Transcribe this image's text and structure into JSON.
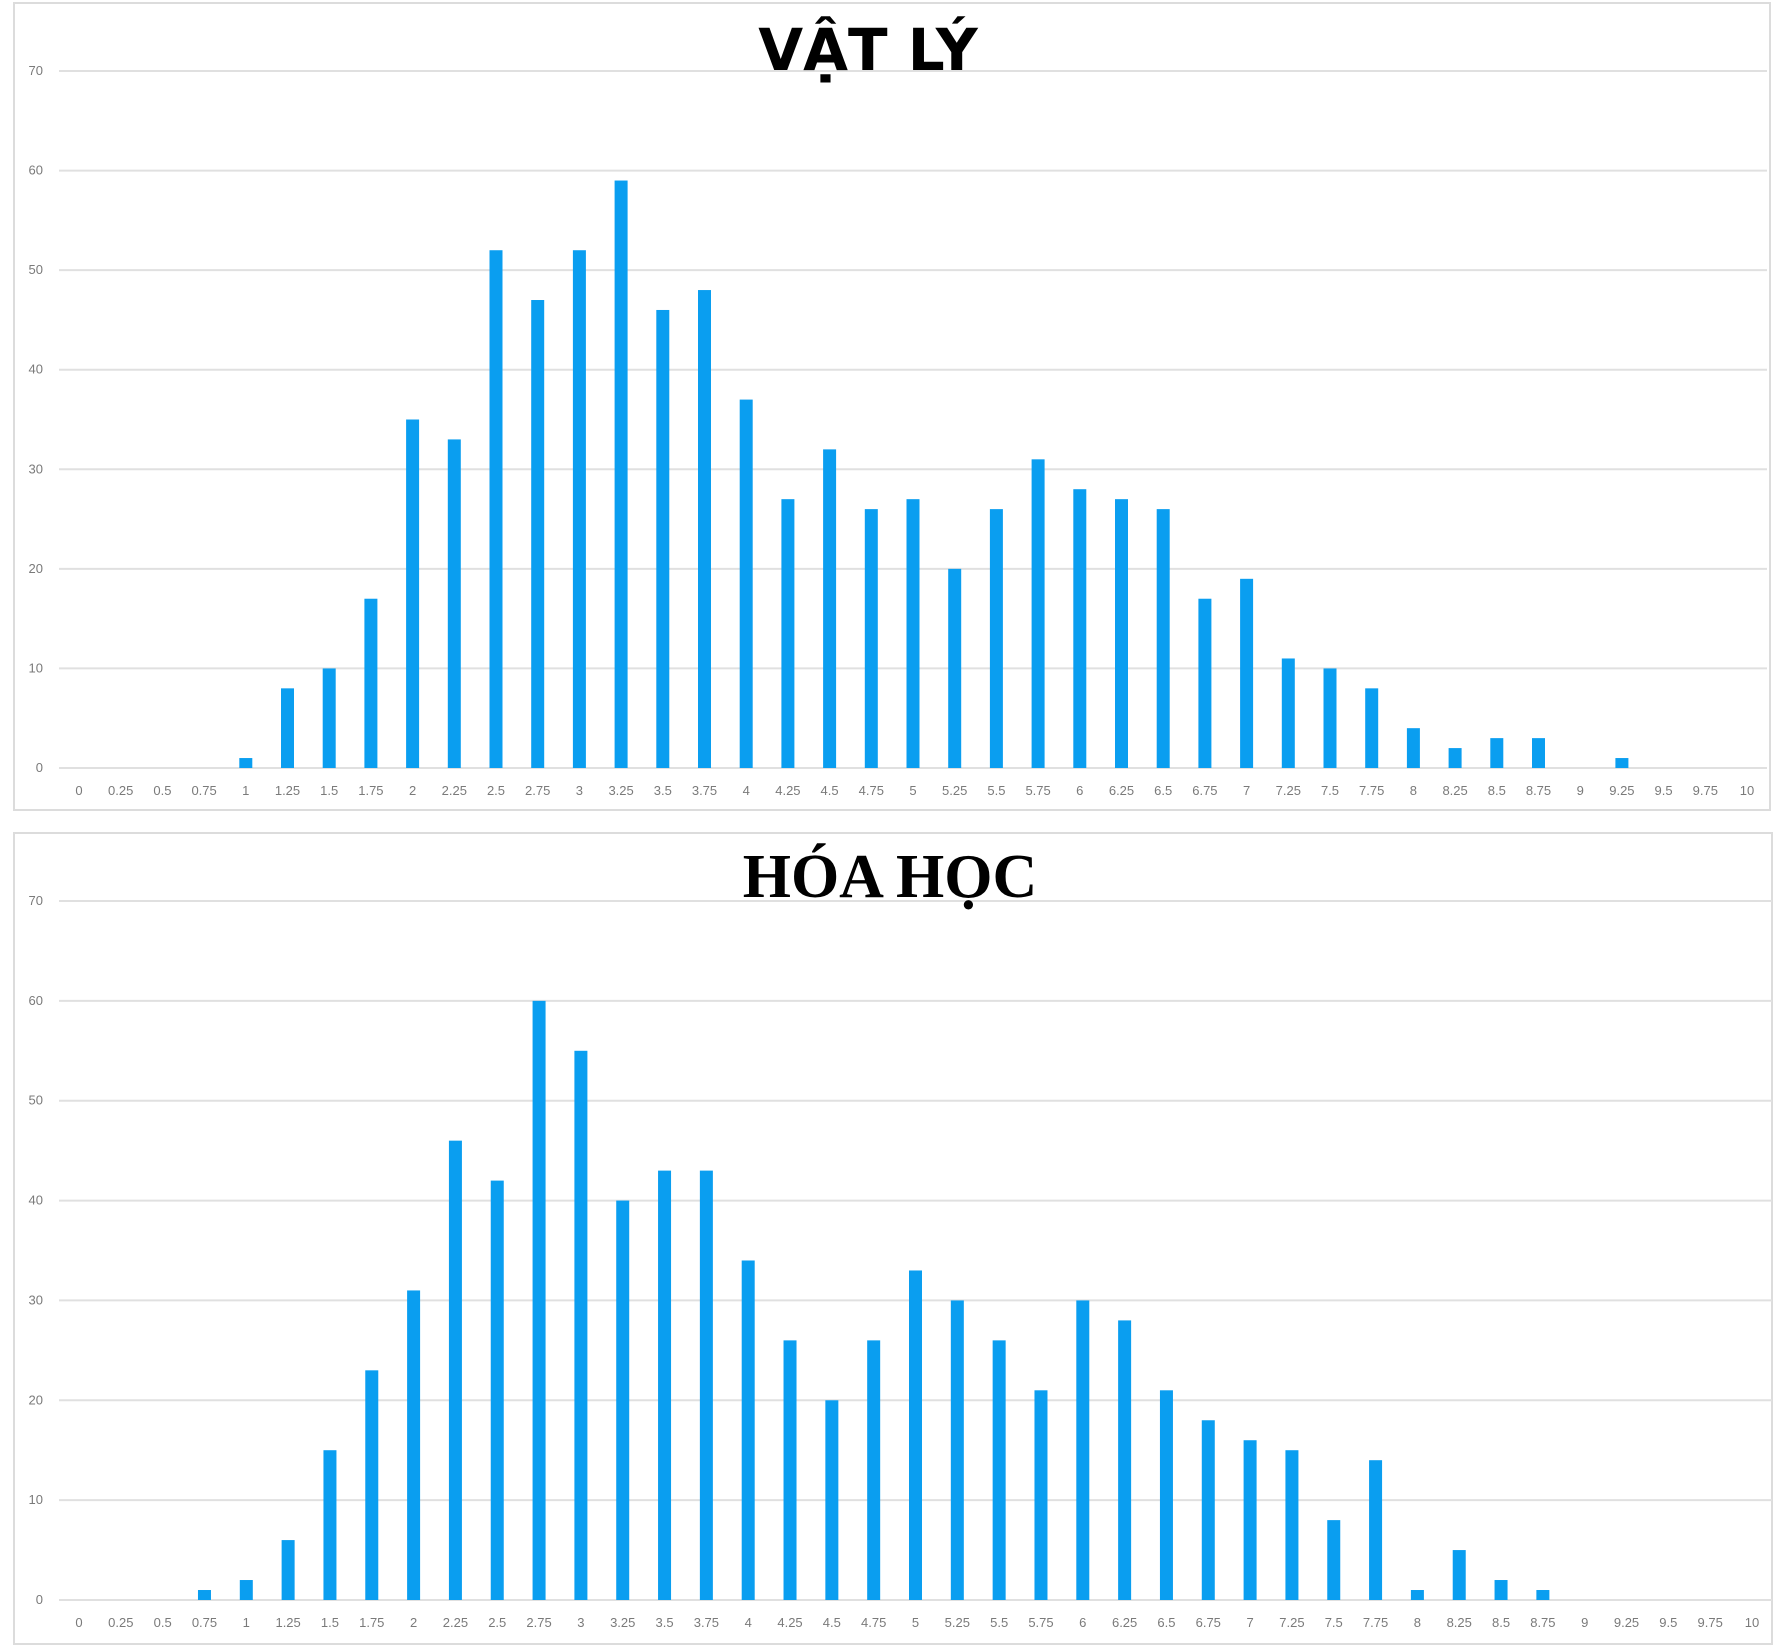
{
  "chart_data": [
    {
      "type": "bar",
      "title": "VẬT LÝ",
      "xlabel": "",
      "ylabel": "",
      "ylim": [
        0,
        70
      ],
      "yticks": [
        0,
        10,
        20,
        30,
        40,
        50,
        60,
        70
      ],
      "grid": true,
      "color": "#0a9ef0",
      "categories": [
        "0",
        "0.25",
        "0.5",
        "0.75",
        "1",
        "1.25",
        "1.5",
        "1.75",
        "2",
        "2.25",
        "2.5",
        "2.75",
        "3",
        "3.25",
        "3.5",
        "3.75",
        "4",
        "4.25",
        "4.5",
        "4.75",
        "5",
        "5.25",
        "5.5",
        "5.75",
        "6",
        "6.25",
        "6.5",
        "6.75",
        "7",
        "7.25",
        "7.5",
        "7.75",
        "8",
        "8.25",
        "8.5",
        "8.75",
        "9",
        "9.25",
        "9.5",
        "9.75",
        "10"
      ],
      "values": [
        0,
        0,
        0,
        0,
        1,
        8,
        10,
        17,
        35,
        33,
        52,
        47,
        52,
        59,
        46,
        48,
        37,
        27,
        32,
        26,
        27,
        20,
        26,
        31,
        28,
        27,
        26,
        17,
        19,
        11,
        10,
        8,
        4,
        2,
        3,
        3,
        0,
        1,
        0,
        0,
        0
      ]
    },
    {
      "type": "bar",
      "title": "HÓA HỌC",
      "xlabel": "",
      "ylabel": "",
      "ylim": [
        0,
        70
      ],
      "yticks": [
        0,
        10,
        20,
        30,
        40,
        50,
        60,
        70
      ],
      "grid": true,
      "color": "#0a9ef0",
      "categories": [
        "0",
        "0.25",
        "0.5",
        "0.75",
        "1",
        "1.25",
        "1.5",
        "1.75",
        "2",
        "2.25",
        "2.5",
        "2.75",
        "3",
        "3.25",
        "3.5",
        "3.75",
        "4",
        "4.25",
        "4.5",
        "4.75",
        "5",
        "5.25",
        "5.5",
        "5.75",
        "6",
        "6.25",
        "6.5",
        "6.75",
        "7",
        "7.25",
        "7.5",
        "7.75",
        "8",
        "8.25",
        "8.5",
        "8.75",
        "9",
        "9.25",
        "9.5",
        "9.75",
        "10"
      ],
      "values": [
        0,
        0,
        0,
        1,
        2,
        6,
        15,
        23,
        31,
        46,
        42,
        60,
        55,
        40,
        43,
        43,
        34,
        26,
        20,
        26,
        33,
        30,
        26,
        21,
        30,
        28,
        21,
        18,
        16,
        15,
        8,
        14,
        1,
        5,
        2,
        1,
        0,
        0,
        0,
        0,
        0
      ]
    }
  ]
}
